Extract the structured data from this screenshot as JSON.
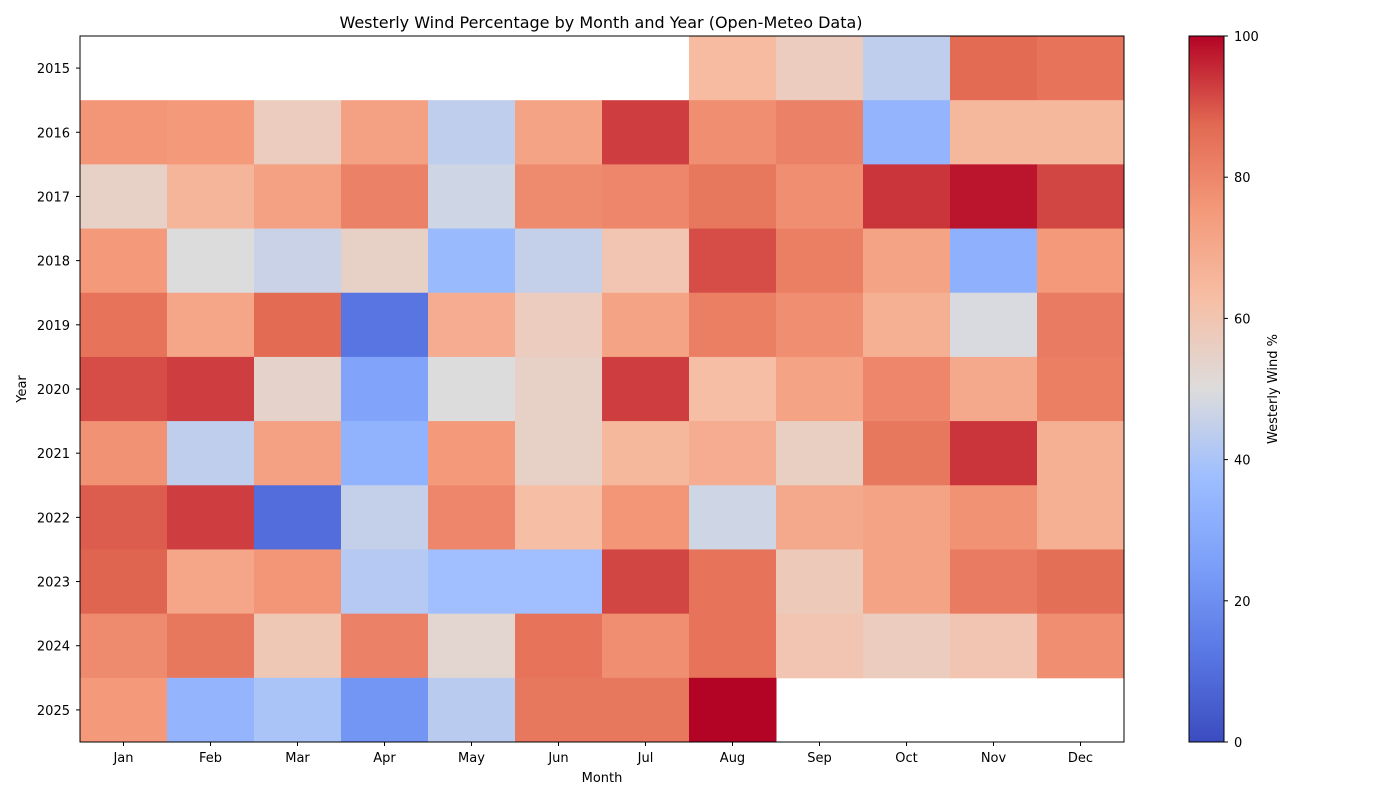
{
  "chart_data": {
    "type": "heatmap",
    "title": "Westerly Wind Percentage by Month and Year (Open-Meteo Data)",
    "xlabel": "Month",
    "ylabel": "Year",
    "x_categories": [
      "Jan",
      "Feb",
      "Mar",
      "Apr",
      "May",
      "Jun",
      "Jul",
      "Aug",
      "Sep",
      "Oct",
      "Nov",
      "Dec"
    ],
    "y_categories": [
      "2015",
      "2016",
      "2017",
      "2018",
      "2019",
      "2020",
      "2021",
      "2022",
      "2023",
      "2024",
      "2025"
    ],
    "values": [
      [
        null,
        null,
        null,
        null,
        null,
        null,
        null,
        64,
        57,
        44,
        87,
        85
      ],
      [
        76,
        75,
        57,
        73,
        44,
        72,
        93,
        78,
        81,
        34,
        65,
        65
      ],
      [
        55,
        66,
        73,
        81,
        47,
        79,
        80,
        84,
        78,
        94,
        98,
        92
      ],
      [
        75,
        50,
        46,
        55,
        36,
        45,
        60,
        91,
        82,
        72,
        32,
        75
      ],
      [
        85,
        71,
        87,
        12,
        69,
        57,
        72,
        82,
        78,
        68,
        49,
        83
      ],
      [
        91,
        93,
        54,
        27,
        50,
        55,
        93,
        63,
        72,
        80,
        70,
        82
      ],
      [
        77,
        44,
        73,
        33,
        75,
        55,
        65,
        69,
        56,
        84,
        94,
        68
      ],
      [
        89,
        93,
        10,
        45,
        80,
        63,
        76,
        47,
        70,
        72,
        77,
        68
      ],
      [
        88,
        71,
        76,
        42,
        38,
        38,
        92,
        85,
        58,
        72,
        83,
        86
      ],
      [
        79,
        84,
        59,
        81,
        53,
        85,
        78,
        85,
        60,
        57,
        60,
        78
      ],
      [
        75,
        34,
        40,
        22,
        43,
        84,
        84,
        100,
        null,
        null,
        null,
        null
      ]
    ],
    "colormap": "coolwarm",
    "vmin": 0,
    "vmax": 100,
    "colorbar": {
      "label": "Westerly Wind %",
      "ticks": [
        0,
        20,
        40,
        60,
        80,
        100
      ]
    }
  }
}
